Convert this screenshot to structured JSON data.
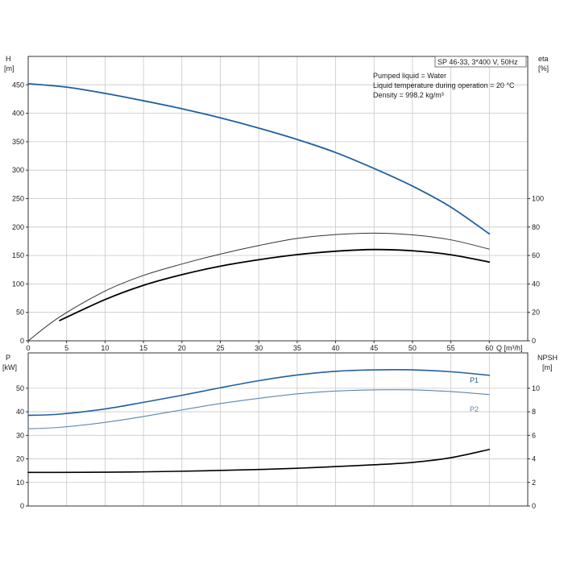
{
  "info": {
    "model": "SP 46-33, 3*400 V, 50Hz",
    "line1": "Pumped liquid = Water",
    "line2": "Liquid temperature during operation = 20 °C",
    "line3": "Density = 998.2 kg/m³"
  },
  "colors": {
    "blue": "#1f5fa0",
    "lightblue": "#5b86b5",
    "black": "#000000",
    "dark": "#333333",
    "grid": "#c8c8c8"
  },
  "chart_data": [
    {
      "type": "line",
      "panel": "top",
      "xlabel": "Q [m³/h]",
      "xlim": [
        0,
        65
      ],
      "xticks": [
        0,
        5,
        10,
        15,
        20,
        25,
        30,
        35,
        40,
        45,
        50,
        55,
        60
      ],
      "ylabel_left": "H\n[m]",
      "ylim_left": [
        0,
        500
      ],
      "yticks_left": [
        0,
        50,
        100,
        150,
        200,
        250,
        300,
        350,
        400,
        450
      ],
      "ylabel_right": "eta\n[%]",
      "ylim_right": [
        0,
        200
      ],
      "yticks_right": [
        0,
        20,
        40,
        60,
        80,
        100
      ],
      "grid": true,
      "series": [
        {
          "axis": "left",
          "color": "blue",
          "width": 1.8,
          "x": [
            0,
            5,
            10,
            15,
            20,
            25,
            30,
            35,
            40,
            45,
            50,
            55,
            60
          ],
          "y": [
            452,
            446,
            435,
            422,
            408,
            392,
            374,
            354,
            331,
            303,
            272,
            235,
            188
          ]
        },
        {
          "axis": "right",
          "color": "dark",
          "width": 1.0,
          "x": [
            0,
            4.1,
            10,
            15,
            20,
            25,
            30,
            35,
            40,
            45,
            50,
            55,
            60
          ],
          "y": [
            0,
            16.8,
            35,
            46,
            54,
            61,
            67,
            72,
            74.7,
            75.7,
            74.5,
            71,
            64.5
          ]
        },
        {
          "axis": "right",
          "color": "black",
          "width": 1.8,
          "x": [
            4.1,
            10,
            15,
            20,
            25,
            30,
            35,
            40,
            45,
            50,
            55,
            60
          ],
          "y": [
            14.3,
            29,
            39,
            46.5,
            52.5,
            57,
            60.6,
            63,
            64.2,
            63.3,
            60.5,
            55.4
          ]
        }
      ]
    },
    {
      "type": "line",
      "panel": "bottom",
      "xlim": [
        0,
        65
      ],
      "ylabel_left": "P\n[kW]",
      "ylim_left": [
        0,
        65
      ],
      "yticks_left": [
        0,
        10,
        20,
        30,
        40,
        50
      ],
      "ylabel_right": "NPSH\n[m]",
      "ylim_right": [
        0,
        13
      ],
      "yticks_right": [
        0,
        2,
        4,
        6,
        8,
        10
      ],
      "grid": true,
      "series": [
        {
          "name": "P1",
          "axis": "left",
          "color": "blue",
          "width": 1.6,
          "x": [
            0,
            4.1,
            10,
            15,
            20,
            25,
            30,
            35,
            40,
            45,
            50,
            55,
            60
          ],
          "y": [
            38.5,
            39,
            41.2,
            44,
            47,
            50.2,
            53.2,
            55.6,
            57.2,
            57.8,
            57.8,
            57,
            55.5
          ]
        },
        {
          "name": "P2",
          "axis": "left",
          "color": "lightblue",
          "width": 1.1,
          "x": [
            0,
            4.1,
            10,
            15,
            20,
            25,
            30,
            35,
            40,
            45,
            50,
            55,
            60
          ],
          "y": [
            32.8,
            33.4,
            35.5,
            38,
            40.8,
            43.5,
            45.7,
            47.6,
            48.8,
            49.3,
            49.3,
            48.6,
            47.3
          ]
        },
        {
          "axis": "right",
          "color": "black",
          "width": 1.6,
          "x": [
            0,
            4.1,
            10,
            15,
            20,
            25,
            30,
            35,
            40,
            45,
            50,
            55,
            60
          ],
          "y": [
            2.85,
            2.85,
            2.87,
            2.9,
            2.95,
            3.02,
            3.1,
            3.2,
            3.35,
            3.5,
            3.7,
            4.1,
            4.8
          ]
        }
      ]
    }
  ]
}
